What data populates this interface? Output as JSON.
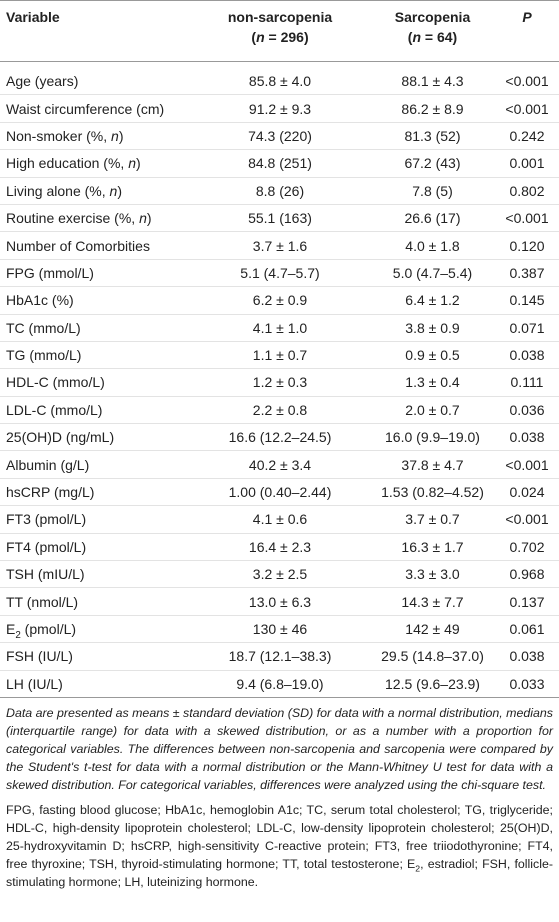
{
  "header": {
    "variable": "Variable",
    "groups": [
      {
        "name": "non-sarcopenia",
        "n": [
          {
            "text": "("
          },
          {
            "text": "n",
            "style": "italic"
          },
          {
            "text": " = 296)"
          }
        ]
      },
      {
        "name": "Sarcopenia",
        "n": [
          {
            "text": "("
          },
          {
            "text": "n",
            "style": "italic"
          },
          {
            "text": " = 64)"
          }
        ]
      }
    ],
    "p": "P"
  },
  "table": {
    "rows": [
      {
        "variable": "Age (years)",
        "non_sarcopenia": "85.8 ± 4.0",
        "sarcopenia": "88.1 ± 4.3",
        "p": "<0.001"
      },
      {
        "variable": "Waist circumference (cm)",
        "non_sarcopenia": "91.2 ± 9.3",
        "sarcopenia": "86.2 ± 8.9",
        "p": "<0.001"
      },
      {
        "variable": [
          {
            "text": "Non-smoker (%, "
          },
          {
            "text": "n",
            "style": "italic"
          },
          {
            "text": ")"
          }
        ],
        "non_sarcopenia": "74.3 (220)",
        "sarcopenia": "81.3 (52)",
        "p": "0.242"
      },
      {
        "variable": [
          {
            "text": "High education (%, "
          },
          {
            "text": "n",
            "style": "italic"
          },
          {
            "text": ")"
          }
        ],
        "non_sarcopenia": "84.8 (251)",
        "sarcopenia": "67.2 (43)",
        "p": "0.001"
      },
      {
        "variable": [
          {
            "text": "Living alone (%, "
          },
          {
            "text": "n",
            "style": "italic"
          },
          {
            "text": ")"
          }
        ],
        "non_sarcopenia": "8.8 (26)",
        "sarcopenia": "7.8 (5)",
        "p": "0.802"
      },
      {
        "variable": [
          {
            "text": "Routine exercise (%, "
          },
          {
            "text": "n",
            "style": "italic"
          },
          {
            "text": ")"
          }
        ],
        "non_sarcopenia": "55.1 (163)",
        "sarcopenia": "26.6 (17)",
        "p": "<0.001"
      },
      {
        "variable": "Number of Comorbities",
        "non_sarcopenia": "3.7 ± 1.6",
        "sarcopenia": "4.0 ± 1.8",
        "p": "0.120"
      },
      {
        "variable": "FPG (mmol/L)",
        "non_sarcopenia": "5.1 (4.7–5.7)",
        "sarcopenia": "5.0 (4.7–5.4)",
        "p": "0.387"
      },
      {
        "variable": "HbA1c (%)",
        "non_sarcopenia": "6.2 ± 0.9",
        "sarcopenia": "6.4 ± 1.2",
        "p": "0.145"
      },
      {
        "variable": "TC (mmo/L)",
        "non_sarcopenia": "4.1 ± 1.0",
        "sarcopenia": "3.8 ± 0.9",
        "p": "0.071"
      },
      {
        "variable": "TG (mmo/L)",
        "non_sarcopenia": "1.1 ± 0.7",
        "sarcopenia": "0.9 ± 0.5",
        "p": "0.038"
      },
      {
        "variable": "HDL-C (mmo/L)",
        "non_sarcopenia": "1.2 ± 0.3",
        "sarcopenia": "1.3 ± 0.4",
        "p": "0.111"
      },
      {
        "variable": "LDL-C (mmo/L)",
        "non_sarcopenia": "2.2 ± 0.8",
        "sarcopenia": "2.0 ± 0.7",
        "p": "0.036"
      },
      {
        "variable": "25(OH)D (ng/mL)",
        "non_sarcopenia": "16.6 (12.2–24.5)",
        "sarcopenia": "16.0 (9.9–19.0)",
        "p": "0.038"
      },
      {
        "variable": "Albumin (g/L)",
        "non_sarcopenia": "40.2 ± 3.4",
        "sarcopenia": "37.8 ± 4.7",
        "p": "<0.001"
      },
      {
        "variable": "hsCRP (mg/L)",
        "non_sarcopenia": "1.00 (0.40–2.44)",
        "sarcopenia": "1.53 (0.82–4.52)",
        "p": "0.024"
      },
      {
        "variable": "FT3 (pmol/L)",
        "non_sarcopenia": "4.1 ± 0.6",
        "sarcopenia": "3.7 ± 0.7",
        "p": "<0.001"
      },
      {
        "variable": "FT4 (pmol/L)",
        "non_sarcopenia": "16.4 ± 2.3",
        "sarcopenia": "16.3 ± 1.7",
        "p": "0.702"
      },
      {
        "variable": "TSH (mIU/L)",
        "non_sarcopenia": "3.2 ± 2.5",
        "sarcopenia": "3.3 ± 3.0",
        "p": "0.968"
      },
      {
        "variable": "TT (nmol/L)",
        "non_sarcopenia": "13.0 ± 6.3",
        "sarcopenia": "14.3 ± 7.7",
        "p": "0.137"
      },
      {
        "variable": [
          {
            "text": "E"
          },
          {
            "text": "2",
            "style": "sub"
          },
          {
            "text": " (pmol/L)"
          }
        ],
        "non_sarcopenia": "130 ± 46",
        "sarcopenia": "142 ± 49",
        "p": "0.061"
      },
      {
        "variable": "FSH (IU/L)",
        "non_sarcopenia": "18.7 (12.1–38.3)",
        "sarcopenia": "29.5 (14.8–37.0)",
        "p": "0.038"
      },
      {
        "variable": "LH (IU/L)",
        "non_sarcopenia": "9.4 (6.8–19.0)",
        "sarcopenia": "12.5 (9.6–23.9)",
        "p": "0.033"
      }
    ]
  },
  "footnotes": [
    "Data are presented as means ± standard deviation (SD) for data with a normal distribution, medians (interquartile range) for data with a skewed distribution, or as a number with a proportion for categorical variables. The differences between non-sarcopenia and sarcopenia were compared by the Student's t-test for data with a normal distribution or the Mann-Whitney U test for data with a skewed distribution. For categorical variables, differences were analyzed using the chi-square test.",
    [
      {
        "text": "FPG, fasting blood glucose; HbA1c, hemoglobin A1c; TC, serum total cholesterol; TG, triglyceride; HDL-C, high-density lipoprotein cholesterol; LDL-C, low-density lipoprotein cholesterol; 25(OH)D, 25-hydroxyvitamin D; hsCRP, high-sensitivity C-reactive protein; FT3, free triiodothyronine; FT4, free thyroxine; TSH, thyroid-stimulating hormone; TT, total testosterone; E"
      },
      {
        "text": "2",
        "style": "sub"
      },
      {
        "text": ", estradiol; FSH, follicle-stimulating hormone; LH, luteinizing hormone."
      }
    ]
  ]
}
